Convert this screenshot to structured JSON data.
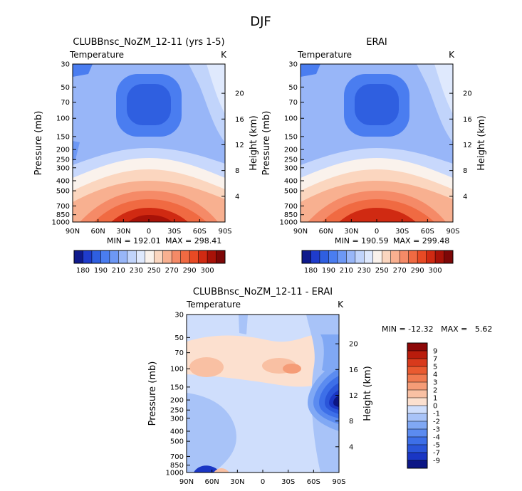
{
  "page": {
    "title": "DJF"
  },
  "colors": {
    "blues": [
      "#0f1a8c",
      "#1f3ccc",
      "#2f5fe0",
      "#4a7df0",
      "#6d98f5",
      "#98b6f8",
      "#c1d4fb",
      "#dfe9fd"
    ],
    "neutral": "#faf2ec",
    "reds": [
      "#fbd6bf",
      "#f8b090",
      "#f58a67",
      "#f06a42",
      "#e84a24",
      "#d02a12",
      "#a81208",
      "#7d0707"
    ],
    "diff_blues": [
      "#0c1685",
      "#1a36c4",
      "#2a55d9",
      "#3d6fe8",
      "#5b8bf0",
      "#80a8f4",
      "#a8c3f8",
      "#cfdefc"
    ],
    "diff_reds": [
      "#fce0cf",
      "#f9c0a3",
      "#f59c77",
      "#f07a50",
      "#e95a30",
      "#d83a1c",
      "#b91c0c",
      "#8c0707"
    ],
    "band_cold": "#c8d8fc",
    "band_warm": "#fde4d3"
  },
  "chart_data": [
    {
      "type": "heatmap",
      "title": "CLUBBnsc_NoZM_12-11 (yrs 1-5)",
      "variable_label": "Temperature",
      "unit_label": "K",
      "ylabel": "Pressure (mb)",
      "y2label": "Height (km)",
      "x_ticks": [
        "90N",
        "60N",
        "30N",
        "0",
        "30S",
        "60S",
        "90S"
      ],
      "y_ticks": [
        "30",
        "50",
        "70",
        "100",
        "150",
        "200",
        "250",
        "300",
        "400",
        "500",
        "700",
        "850",
        "1000"
      ],
      "y2_ticks": [
        "20",
        "16",
        "12",
        "8",
        "4"
      ],
      "min_label": "MIN = 192.01",
      "max_label": "MAX = 298.41",
      "min": 192.01,
      "max": 298.41,
      "colorbar_labels": [
        "180",
        "190",
        "210",
        "230",
        "250",
        "270",
        "290",
        "300"
      ],
      "colorbar_levels": [
        180,
        185,
        190,
        200,
        210,
        220,
        230,
        240,
        250,
        260,
        270,
        280,
        290,
        295,
        300
      ],
      "yscale": "log",
      "ylim": [
        1000,
        30
      ]
    },
    {
      "type": "heatmap",
      "title": "ERAI",
      "variable_label": "Temperature",
      "unit_label": "K",
      "ylabel": "Pressure (mb)",
      "y2label": "Height (km)",
      "x_ticks": [
        "90N",
        "60N",
        "30N",
        "0",
        "30S",
        "60S",
        "90S"
      ],
      "y_ticks": [
        "30",
        "50",
        "70",
        "100",
        "150",
        "200",
        "250",
        "300",
        "400",
        "500",
        "700",
        "850",
        "1000"
      ],
      "y2_ticks": [
        "20",
        "16",
        "12",
        "8",
        "4"
      ],
      "min_label": "MIN = 190.59",
      "max_label": "MAX = 299.48",
      "min": 190.59,
      "max": 299.48,
      "colorbar_labels": [
        "180",
        "190",
        "210",
        "230",
        "250",
        "270",
        "290",
        "300"
      ],
      "colorbar_levels": [
        180,
        185,
        190,
        200,
        210,
        220,
        230,
        240,
        250,
        260,
        270,
        280,
        290,
        295,
        300
      ],
      "yscale": "log",
      "ylim": [
        1000,
        30
      ]
    },
    {
      "type": "heatmap",
      "title": "CLUBBnsc_NoZM_12-11 - ERAI",
      "variable_label": "Temperature",
      "unit_label": "K",
      "ylabel": "Pressure (mb)",
      "y2label": "Height (km)",
      "x_ticks": [
        "90N",
        "60N",
        "30N",
        "0",
        "30S",
        "60S",
        "90S"
      ],
      "y_ticks": [
        "30",
        "50",
        "70",
        "100",
        "150",
        "200",
        "250",
        "300",
        "400",
        "500",
        "700",
        "850",
        "1000"
      ],
      "y2_ticks": [
        "20",
        "16",
        "12",
        "8",
        "4"
      ],
      "minmax_label": "MIN = -12.32   MAX =   5.62",
      "min": -12.32,
      "max": 5.62,
      "colorbar_labels": [
        "9",
        "7",
        "5",
        "4",
        "3",
        "2",
        "1",
        "0",
        "-1",
        "-2",
        "-3",
        "-4",
        "-5",
        "-7",
        "-9"
      ],
      "colorbar_levels": [
        -9,
        -7,
        -5,
        -4,
        -3,
        -2,
        -1,
        0,
        1,
        2,
        3,
        4,
        5,
        7,
        9
      ],
      "yscale": "log",
      "ylim": [
        1000,
        30
      ]
    }
  ]
}
